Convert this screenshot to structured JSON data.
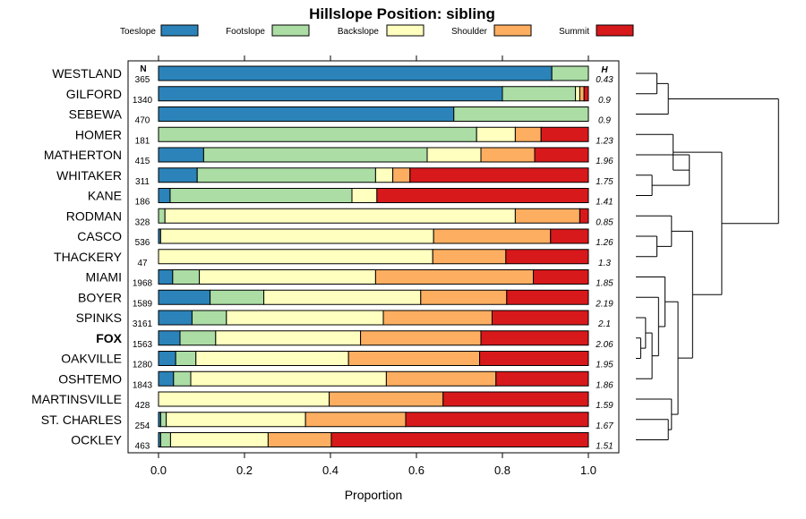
{
  "chart_data": {
    "type": "bar",
    "orientation": "horizontal-stacked",
    "title": "Hillslope Position: sibling",
    "xlabel": "Proportion",
    "ylabel": "",
    "xlim": [
      0,
      1
    ],
    "x_ticks": [
      "0.0",
      "0.2",
      "0.4",
      "0.6",
      "0.8",
      "1.0"
    ],
    "n_header": "N",
    "h_header": "H",
    "legend": [
      {
        "name": "Toeslope",
        "color": "#2b83ba"
      },
      {
        "name": "Footslope",
        "color": "#abdda4"
      },
      {
        "name": "Backslope",
        "color": "#ffffbf"
      },
      {
        "name": "Shoulder",
        "color": "#fdae61"
      },
      {
        "name": "Summit",
        "color": "#d7191c"
      }
    ],
    "categories": [
      {
        "name": "WESTLAND",
        "n": "365",
        "h": "0.43",
        "bold": false,
        "values": [
          0.915,
          0.085,
          0,
          0,
          0
        ]
      },
      {
        "name": "GILFORD",
        "n": "1340",
        "h": "0.9",
        "bold": false,
        "values": [
          0.8,
          0.17,
          0.01,
          0.01,
          0.01
        ]
      },
      {
        "name": "SEBEWA",
        "n": "470",
        "h": "0.9",
        "bold": false,
        "values": [
          0.687,
          0.313,
          0,
          0,
          0
        ]
      },
      {
        "name": "HOMER",
        "n": "181",
        "h": "1.23",
        "bold": false,
        "values": [
          0,
          0.74,
          0.09,
          0.06,
          0.11
        ]
      },
      {
        "name": "MATHERTON",
        "n": "415",
        "h": "1.96",
        "bold": false,
        "values": [
          0.105,
          0.52,
          0.125,
          0.125,
          0.125
        ]
      },
      {
        "name": "WHITAKER",
        "n": "311",
        "h": "1.75",
        "bold": false,
        "values": [
          0.09,
          0.415,
          0.04,
          0.04,
          0.415
        ]
      },
      {
        "name": "KANE",
        "n": "186",
        "h": "1.41",
        "bold": false,
        "values": [
          0.027,
          0.423,
          0.058,
          0,
          0.492
        ]
      },
      {
        "name": "RODMAN",
        "n": "328",
        "h": "0.85",
        "bold": false,
        "values": [
          0,
          0.015,
          0.815,
          0.15,
          0.02
        ]
      },
      {
        "name": "CASCO",
        "n": "536",
        "h": "1.26",
        "bold": false,
        "values": [
          0.005,
          0,
          0.635,
          0.272,
          0.088
        ]
      },
      {
        "name": "THACKERY",
        "n": "47",
        "h": "1.3",
        "bold": false,
        "values": [
          0,
          0,
          0.638,
          0.17,
          0.192
        ]
      },
      {
        "name": "MIAMI",
        "n": "1968",
        "h": "1.85",
        "bold": false,
        "values": [
          0.033,
          0.062,
          0.41,
          0.367,
          0.128
        ]
      },
      {
        "name": "BOYER",
        "n": "1589",
        "h": "2.19",
        "bold": false,
        "values": [
          0.12,
          0.125,
          0.365,
          0.2,
          0.19
        ]
      },
      {
        "name": "SPINKS",
        "n": "3161",
        "h": "2.1",
        "bold": false,
        "values": [
          0.078,
          0.08,
          0.365,
          0.253,
          0.224
        ]
      },
      {
        "name": "FOX",
        "n": "1563",
        "h": "2.06",
        "bold": true,
        "values": [
          0.05,
          0.083,
          0.337,
          0.28,
          0.25
        ]
      },
      {
        "name": "OAKVILLE",
        "n": "1280",
        "h": "1.95",
        "bold": false,
        "values": [
          0.04,
          0.047,
          0.355,
          0.305,
          0.253
        ]
      },
      {
        "name": "OSHTEMO",
        "n": "1843",
        "h": "1.86",
        "bold": false,
        "values": [
          0.035,
          0.04,
          0.455,
          0.255,
          0.215
        ]
      },
      {
        "name": "MARTINSVILLE",
        "n": "428",
        "h": "1.59",
        "bold": false,
        "values": [
          0,
          0,
          0.397,
          0.265,
          0.338
        ]
      },
      {
        "name": "ST. CHARLES",
        "n": "254",
        "h": "1.67",
        "bold": false,
        "values": [
          0.005,
          0.013,
          0.324,
          0.233,
          0.425
        ]
      },
      {
        "name": "OCKLEY",
        "n": "463",
        "h": "1.51",
        "bold": false,
        "values": [
          0.005,
          0.023,
          0.227,
          0.147,
          0.598
        ]
      }
    ],
    "dendrogram": {
      "leaves": [
        "WESTLAND",
        "GILFORD",
        "SEBEWA",
        "HOMER",
        "MATHERTON",
        "WHITAKER",
        "KANE",
        "RODMAN",
        "CASCO",
        "THACKERY",
        "MIAMI",
        "BOYER",
        "SPINKS",
        "FOX",
        "OAKVILLE",
        "OSHTEMO",
        "MARTINSVILLE",
        "ST. CHARLES",
        "OCKLEY"
      ],
      "merges": [
        {
          "a": "WESTLAND",
          "b": "GILFORD",
          "height": 0.13
        },
        {
          "a": "m0",
          "b": "SEBEWA",
          "height": 0.2
        },
        {
          "a": "WHITAKER",
          "b": "KANE",
          "height": 0.1
        },
        {
          "a": "MATHERTON",
          "b": "m2",
          "height": 0.33
        },
        {
          "a": "HOMER",
          "b": "m3",
          "height": 0.23
        },
        {
          "a": "CASCO",
          "b": "THACKERY",
          "height": 0.13
        },
        {
          "a": "RODMAN",
          "b": "m5",
          "height": 0.22
        },
        {
          "a": "FOX",
          "b": "OAKVILLE",
          "height": 0.03
        },
        {
          "a": "SPINKS",
          "b": "m7",
          "height": 0.06
        },
        {
          "a": "m8",
          "b": "OSHTEMO",
          "height": 0.1
        },
        {
          "a": "BOYER",
          "b": "m9",
          "height": 0.14
        },
        {
          "a": "MIAMI",
          "b": "m10",
          "height": 0.18
        },
        {
          "a": "ST. CHARLES",
          "b": "OCKLEY",
          "height": 0.2
        },
        {
          "a": "MARTINSVILLE",
          "b": "m12",
          "height": 0.22
        },
        {
          "a": "m11",
          "b": "m13",
          "height": 0.26
        },
        {
          "a": "m6",
          "b": "m14",
          "height": 0.35
        },
        {
          "a": "m4",
          "b": "m15",
          "height": 0.53
        },
        {
          "a": "m1",
          "b": "m16",
          "height": 0.88
        }
      ]
    }
  }
}
